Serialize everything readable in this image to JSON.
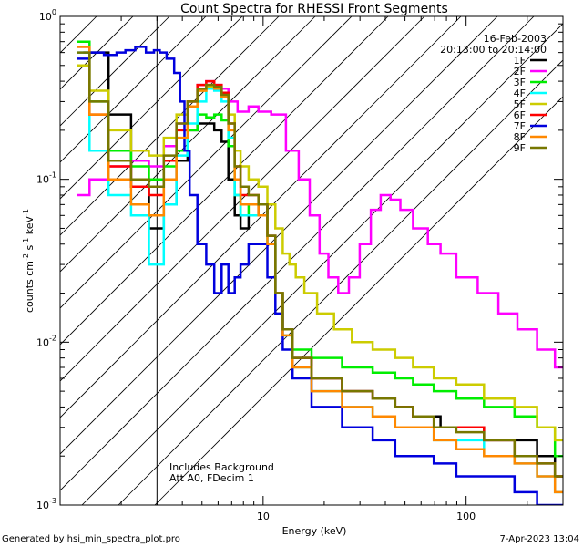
{
  "chart_data": {
    "type": "line",
    "title": "Count Spectra for RHESSI Front Segments",
    "xlabel": "Energy (keV)",
    "ylabel_parts": [
      "counts cm",
      "-2",
      " s",
      "-1",
      " keV",
      "-1"
    ],
    "xscale": "log",
    "yscale": "log",
    "xlim": [
      1,
      300
    ],
    "ylim": [
      0.001,
      1
    ],
    "x_ticks": [
      {
        "v": 10,
        "label": "10"
      },
      {
        "v": 100,
        "label": "100"
      }
    ],
    "y_ticks": [
      {
        "v": 1,
        "m": "10",
        "e": "0"
      },
      {
        "v": 0.1,
        "m": "10",
        "e": "-1"
      },
      {
        "v": 0.01,
        "m": "10",
        "e": "-2"
      },
      {
        "v": 0.001,
        "m": "10",
        "e": "-3"
      }
    ],
    "date": "16-Feb-2003",
    "time_range": "20:13:00 to 20:14:00",
    "annotations": [
      "Includes Background",
      "Att A0, FDecim 1"
    ],
    "hatched_region_xmax": 3,
    "footer_left": "Generated by hsi_min_spectra_plot.pro",
    "footer_right": "7-Apr-2023 13:04",
    "series": [
      {
        "name": "1F",
        "color": "#000000",
        "x": [
          1.5,
          2.0,
          2.5,
          3.0,
          3.5,
          4.0,
          4.5,
          5.0,
          5.5,
          6.0,
          6.5,
          7.0,
          7.5,
          8.0,
          9.0,
          10.0,
          11.0,
          12.0,
          13.0,
          15.0,
          20.0,
          30.0,
          40.0,
          50.0,
          60.0,
          70.0,
          80.0,
          100.0,
          150.0,
          200.0,
          250.0,
          300.0
        ],
        "y": [
          0.6,
          0.25,
          0.09,
          0.05,
          0.07,
          0.13,
          0.2,
          0.22,
          0.22,
          0.2,
          0.17,
          0.1,
          0.06,
          0.05,
          0.06,
          0.07,
          0.045,
          0.02,
          0.012,
          0.008,
          0.006,
          0.005,
          0.0045,
          0.004,
          0.0035,
          0.0035,
          0.003,
          0.003,
          0.0025,
          0.0025,
          0.002,
          0.0015
        ]
      },
      {
        "name": "2F",
        "color": "#ff00ff",
        "x": [
          1.3,
          1.5,
          2.0,
          2.5,
          3.0,
          3.5,
          4.0,
          4.5,
          5.0,
          5.5,
          6.0,
          6.5,
          7.0,
          8.0,
          9.0,
          10.0,
          12.0,
          14.0,
          16.0,
          18.0,
          20.0,
          22.0,
          25.0,
          28.0,
          32.0,
          36.0,
          40.0,
          45.0,
          50.0,
          60.0,
          70.0,
          80.0,
          100.0,
          130.0,
          160.0,
          200.0,
          250.0,
          300.0
        ],
        "y": [
          0.08,
          0.1,
          0.12,
          0.13,
          0.12,
          0.16,
          0.22,
          0.3,
          0.38,
          0.4,
          0.38,
          0.36,
          0.3,
          0.26,
          0.28,
          0.26,
          0.25,
          0.15,
          0.1,
          0.06,
          0.035,
          0.025,
          0.02,
          0.025,
          0.04,
          0.065,
          0.08,
          0.075,
          0.065,
          0.05,
          0.04,
          0.035,
          0.025,
          0.02,
          0.015,
          0.012,
          0.009,
          0.007
        ]
      },
      {
        "name": "3F",
        "color": "#00ee00",
        "x": [
          1.3,
          1.5,
          2.0,
          2.5,
          3.0,
          3.5,
          4.0,
          4.5,
          5.0,
          5.5,
          6.0,
          6.5,
          7.0,
          7.5,
          8.0,
          9.0,
          10.0,
          11.0,
          12.0,
          13.0,
          15.0,
          20.0,
          30.0,
          40.0,
          50.0,
          60.0,
          80.0,
          100.0,
          150.0,
          200.0,
          250.0,
          300.0
        ],
        "y": [
          0.7,
          0.3,
          0.15,
          0.12,
          0.1,
          0.12,
          0.15,
          0.2,
          0.25,
          0.24,
          0.25,
          0.23,
          0.16,
          0.08,
          0.06,
          0.07,
          0.07,
          0.04,
          0.02,
          0.012,
          0.009,
          0.008,
          0.007,
          0.0065,
          0.006,
          0.0055,
          0.005,
          0.0045,
          0.004,
          0.0035,
          0.003,
          0.002
        ]
      },
      {
        "name": "4F",
        "color": "#00ffff",
        "x": [
          1.3,
          1.5,
          2.0,
          2.5,
          3.0,
          3.5,
          4.0,
          4.5,
          5.0,
          5.5,
          6.0,
          6.5,
          7.0,
          7.5,
          8.0,
          9.0,
          10.0,
          11.0,
          12.0,
          13.0,
          15.0,
          20.0,
          30.0,
          40.0,
          50.0,
          60.0,
          80.0,
          100.0,
          150.0,
          200.0,
          250.0,
          300.0
        ],
        "y": [
          0.6,
          0.15,
          0.08,
          0.06,
          0.03,
          0.07,
          0.14,
          0.22,
          0.3,
          0.36,
          0.35,
          0.3,
          0.18,
          0.08,
          0.06,
          0.06,
          0.06,
          0.04,
          0.02,
          0.011,
          0.007,
          0.005,
          0.004,
          0.0035,
          0.003,
          0.003,
          0.0025,
          0.0025,
          0.002,
          0.0018,
          0.0015,
          0.0012
        ]
      },
      {
        "name": "5F",
        "color": "#cccc00",
        "x": [
          1.3,
          1.5,
          2.0,
          2.5,
          3.0,
          3.5,
          4.0,
          4.5,
          5.0,
          5.5,
          6.0,
          6.5,
          7.0,
          7.5,
          8.0,
          9.0,
          10.0,
          11.0,
          12.0,
          13.0,
          14.0,
          15.0,
          17.0,
          20.0,
          25.0,
          30.0,
          40.0,
          50.0,
          60.0,
          80.0,
          100.0,
          150.0,
          200.0,
          250.0,
          300.0
        ],
        "y": [
          0.5,
          0.35,
          0.2,
          0.15,
          0.14,
          0.18,
          0.25,
          0.3,
          0.35,
          0.37,
          0.36,
          0.33,
          0.25,
          0.15,
          0.12,
          0.1,
          0.09,
          0.07,
          0.05,
          0.035,
          0.03,
          0.025,
          0.02,
          0.015,
          0.012,
          0.01,
          0.009,
          0.008,
          0.007,
          0.006,
          0.0055,
          0.0045,
          0.004,
          0.003,
          0.0025
        ]
      },
      {
        "name": "6F",
        "color": "#ff0000",
        "x": [
          1.3,
          1.5,
          2.0,
          2.5,
          3.0,
          3.5,
          4.0,
          4.5,
          5.0,
          5.5,
          6.0,
          6.5,
          7.0,
          7.5,
          8.0,
          9.0,
          10.0,
          11.0,
          12.0,
          13.0,
          15.0,
          20.0,
          30.0,
          40.0,
          50.0,
          60.0,
          80.0,
          100.0,
          150.0,
          200.0,
          250.0,
          300.0
        ],
        "y": [
          0.65,
          0.25,
          0.12,
          0.09,
          0.08,
          0.13,
          0.2,
          0.3,
          0.38,
          0.4,
          0.38,
          0.34,
          0.22,
          0.12,
          0.08,
          0.08,
          0.07,
          0.045,
          0.02,
          0.012,
          0.008,
          0.006,
          0.005,
          0.0045,
          0.004,
          0.0035,
          0.003,
          0.003,
          0.0025,
          0.002,
          0.0018,
          0.0015
        ]
      },
      {
        "name": "7F",
        "color": "#0000dd",
        "x": [
          1.3,
          1.5,
          1.8,
          2.0,
          2.2,
          2.5,
          2.8,
          3.0,
          3.2,
          3.5,
          3.8,
          4.0,
          4.2,
          4.5,
          5.0,
          5.5,
          6.0,
          6.5,
          7.0,
          7.5,
          8.0,
          9.0,
          10.0,
          11.0,
          12.0,
          13.0,
          15.0,
          20.0,
          30.0,
          40.0,
          50.0,
          60.0,
          80.0,
          100.0,
          150.0,
          200.0,
          250.0,
          300.0
        ],
        "y": [
          0.55,
          0.6,
          0.58,
          0.6,
          0.62,
          0.65,
          0.6,
          0.62,
          0.6,
          0.55,
          0.45,
          0.3,
          0.15,
          0.08,
          0.04,
          0.03,
          0.02,
          0.03,
          0.02,
          0.025,
          0.03,
          0.04,
          0.04,
          0.025,
          0.015,
          0.009,
          0.006,
          0.004,
          0.003,
          0.0025,
          0.002,
          0.002,
          0.0018,
          0.0015,
          0.0015,
          0.0012,
          0.001,
          0.001
        ]
      },
      {
        "name": "8F",
        "color": "#ff8800",
        "x": [
          1.3,
          1.5,
          2.0,
          2.5,
          3.0,
          3.5,
          4.0,
          4.5,
          5.0,
          5.5,
          6.0,
          6.5,
          7.0,
          7.5,
          8.0,
          9.0,
          10.0,
          11.0,
          12.0,
          13.0,
          15.0,
          20.0,
          30.0,
          40.0,
          50.0,
          60.0,
          80.0,
          100.0,
          150.0,
          200.0,
          250.0,
          300.0
        ],
        "y": [
          0.65,
          0.25,
          0.1,
          0.07,
          0.06,
          0.1,
          0.18,
          0.28,
          0.35,
          0.38,
          0.36,
          0.32,
          0.2,
          0.1,
          0.07,
          0.07,
          0.06,
          0.04,
          0.02,
          0.011,
          0.007,
          0.005,
          0.004,
          0.0035,
          0.003,
          0.003,
          0.0025,
          0.0022,
          0.002,
          0.0018,
          0.0015,
          0.0012
        ]
      },
      {
        "name": "9F",
        "color": "#777700",
        "x": [
          1.3,
          1.5,
          2.0,
          2.5,
          3.0,
          3.5,
          4.0,
          4.5,
          5.0,
          5.5,
          6.0,
          6.5,
          7.0,
          7.5,
          8.0,
          9.0,
          10.0,
          11.0,
          12.0,
          13.0,
          15.0,
          20.0,
          30.0,
          40.0,
          50.0,
          60.0,
          80.0,
          100.0,
          150.0,
          200.0,
          250.0,
          300.0
        ],
        "y": [
          0.6,
          0.3,
          0.13,
          0.1,
          0.09,
          0.14,
          0.22,
          0.3,
          0.36,
          0.38,
          0.37,
          0.33,
          0.22,
          0.12,
          0.09,
          0.08,
          0.07,
          0.045,
          0.02,
          0.012,
          0.008,
          0.006,
          0.005,
          0.0045,
          0.004,
          0.0035,
          0.003,
          0.0028,
          0.0025,
          0.002,
          0.0018,
          0.0015
        ]
      }
    ]
  }
}
